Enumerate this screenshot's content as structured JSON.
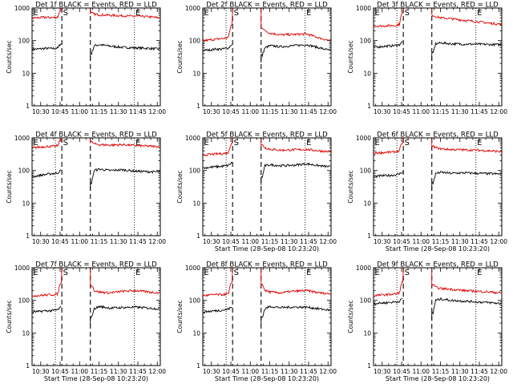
{
  "colors": {
    "events": "#000000",
    "lld": "#e00000",
    "axes": "#000000",
    "background": "#ffffff"
  },
  "common": {
    "x_labels": [
      "10:30",
      "10:45",
      "11:00",
      "11:15",
      "11:30",
      "11:45",
      "12:00"
    ],
    "y_labels": [
      "1",
      "10",
      "100",
      "1000"
    ],
    "ylabel": "Counts/sec",
    "xlabel": "Start Time (28-Sep-08 10:23:20)",
    "markers": [
      {
        "label": "E",
        "t_min": 0,
        "style": "dotted"
      },
      {
        "label": "",
        "t_min": 18,
        "style": "dotted"
      },
      {
        "label": "S",
        "t_min": 23,
        "style": "dashed"
      },
      {
        "label": "",
        "t_min": 45,
        "style": "dashed"
      },
      {
        "label": "E",
        "t_min": 79,
        "style": "dotted"
      }
    ]
  },
  "chart_data": [
    {
      "type": "line",
      "title": "Det 1f BLACK = Events, RED = LLD",
      "x_unit": "minutes after 10:23:20",
      "xlim": [
        0,
        99
      ],
      "ylim": [
        1,
        1000
      ],
      "yscale": "log",
      "gap": [
        23,
        45
      ],
      "show_xlabel": false,
      "series": [
        {
          "name": "Events",
          "color": "black",
          "x": [
            1,
            5,
            10,
            15,
            18,
            20,
            22,
            46,
            48,
            52,
            60,
            70,
            80,
            90,
            98
          ],
          "y": [
            55,
            55,
            58,
            57,
            58,
            60,
            80,
            40,
            70,
            75,
            68,
            62,
            60,
            58,
            55
          ]
        },
        {
          "name": "LLD",
          "color": "red",
          "x": [
            1,
            5,
            10,
            15,
            18,
            20,
            22,
            46,
            48,
            52,
            60,
            70,
            80,
            90,
            98
          ],
          "y": [
            500,
            500,
            520,
            510,
            510,
            550,
            900,
            700,
            650,
            620,
            600,
            580,
            560,
            540,
            500
          ]
        }
      ]
    },
    {
      "type": "line",
      "title": "Det 2f BLACK = Events, RED = LLD",
      "x_unit": "minutes after 10:23:20",
      "xlim": [
        0,
        99
      ],
      "ylim": [
        1,
        1000
      ],
      "yscale": "log",
      "gap": [
        23,
        45
      ],
      "show_xlabel": false,
      "series": [
        {
          "name": "Events",
          "color": "black",
          "x": [
            1,
            5,
            10,
            15,
            18,
            20,
            22,
            46,
            48,
            52,
            60,
            70,
            80,
            90,
            98
          ],
          "y": [
            50,
            52,
            55,
            55,
            58,
            60,
            75,
            35,
            60,
            70,
            65,
            70,
            75,
            60,
            50
          ]
        },
        {
          "name": "LLD",
          "color": "red",
          "x": [
            1,
            5,
            10,
            15,
            18,
            20,
            22,
            46,
            48,
            52,
            60,
            70,
            80,
            90,
            98
          ],
          "y": [
            100,
            105,
            110,
            115,
            120,
            130,
            300,
            250,
            200,
            170,
            150,
            155,
            160,
            120,
            100
          ]
        }
      ]
    },
    {
      "type": "line",
      "title": "Det 3f BLACK = Events, RED = LLD",
      "x_unit": "minutes after 10:23:20",
      "xlim": [
        0,
        99
      ],
      "ylim": [
        1,
        1000
      ],
      "yscale": "log",
      "gap": [
        23,
        45
      ],
      "show_xlabel": false,
      "series": [
        {
          "name": "Events",
          "color": "black",
          "x": [
            1,
            5,
            10,
            15,
            18,
            20,
            22,
            46,
            48,
            52,
            60,
            70,
            80,
            90,
            98
          ],
          "y": [
            65,
            65,
            68,
            70,
            72,
            75,
            90,
            40,
            80,
            85,
            80,
            78,
            78,
            76,
            75
          ]
        },
        {
          "name": "LLD",
          "color": "red",
          "x": [
            1,
            5,
            10,
            15,
            18,
            20,
            22,
            46,
            48,
            52,
            60,
            70,
            80,
            90,
            98
          ],
          "y": [
            280,
            280,
            285,
            290,
            300,
            320,
            700,
            600,
            550,
            500,
            470,
            420,
            380,
            340,
            320
          ]
        }
      ]
    },
    {
      "type": "line",
      "title": "Det 4f BLACK = Events, RED = LLD",
      "x_unit": "minutes after 10:23:20",
      "xlim": [
        0,
        99
      ],
      "ylim": [
        1,
        1000
      ],
      "yscale": "log",
      "gap": [
        23,
        45
      ],
      "show_xlabel": false,
      "series": [
        {
          "name": "Events",
          "color": "black",
          "x": [
            1,
            5,
            10,
            15,
            18,
            20,
            22,
            46,
            48,
            52,
            60,
            70,
            80,
            90,
            98
          ],
          "y": [
            65,
            70,
            75,
            80,
            82,
            85,
            100,
            40,
            100,
            110,
            100,
            105,
            95,
            92,
            90
          ]
        },
        {
          "name": "LLD",
          "color": "red",
          "x": [
            1,
            5,
            10,
            15,
            18,
            20,
            22,
            46,
            48,
            52,
            60,
            70,
            80,
            90,
            98
          ],
          "y": [
            500,
            520,
            540,
            550,
            560,
            580,
            900,
            750,
            650,
            620,
            600,
            620,
            580,
            560,
            540
          ]
        }
      ]
    },
    {
      "type": "line",
      "title": "Det 5f BLACK = Events, RED = LLD",
      "x_unit": "minutes after 10:23:20",
      "xlim": [
        0,
        99
      ],
      "ylim": [
        1,
        1000
      ],
      "yscale": "log",
      "gap": [
        23,
        45
      ],
      "show_xlabel": true,
      "series": [
        {
          "name": "Events",
          "color": "black",
          "x": [
            1,
            5,
            10,
            15,
            18,
            20,
            22,
            46,
            48,
            52,
            60,
            70,
            80,
            90,
            98
          ],
          "y": [
            120,
            125,
            130,
            135,
            140,
            145,
            170,
            60,
            140,
            150,
            140,
            145,
            160,
            140,
            130
          ]
        },
        {
          "name": "LLD",
          "color": "red",
          "x": [
            1,
            5,
            10,
            15,
            18,
            20,
            22,
            46,
            48,
            52,
            60,
            70,
            80,
            90,
            98
          ],
          "y": [
            300,
            310,
            320,
            330,
            340,
            360,
            700,
            600,
            500,
            450,
            420,
            430,
            440,
            400,
            380
          ]
        }
      ]
    },
    {
      "type": "line",
      "title": "Det 6f BLACK = Events, RED = LLD",
      "x_unit": "minutes after 10:23:20",
      "xlim": [
        0,
        99
      ],
      "ylim": [
        1,
        1000
      ],
      "yscale": "log",
      "gap": [
        23,
        45
      ],
      "show_xlabel": true,
      "series": [
        {
          "name": "Events",
          "color": "black",
          "x": [
            1,
            5,
            10,
            15,
            18,
            20,
            22,
            46,
            48,
            52,
            60,
            70,
            80,
            90,
            98
          ],
          "y": [
            65,
            68,
            70,
            72,
            75,
            78,
            90,
            40,
            80,
            88,
            82,
            85,
            82,
            80,
            78
          ]
        },
        {
          "name": "LLD",
          "color": "red",
          "x": [
            1,
            5,
            10,
            15,
            18,
            20,
            22,
            46,
            48,
            52,
            60,
            70,
            80,
            90,
            98
          ],
          "y": [
            350,
            350,
            360,
            370,
            380,
            400,
            700,
            550,
            500,
            460,
            440,
            430,
            420,
            400,
            380
          ]
        }
      ]
    },
    {
      "type": "line",
      "title": "Det 7f BLACK = Events, RED = LLD",
      "x_unit": "minutes after 10:23:20",
      "xlim": [
        0,
        99
      ],
      "ylim": [
        1,
        1000
      ],
      "yscale": "log",
      "gap": [
        23,
        45
      ],
      "show_xlabel": true,
      "series": [
        {
          "name": "Events",
          "color": "black",
          "x": [
            1,
            5,
            10,
            15,
            18,
            20,
            22,
            46,
            48,
            52,
            60,
            70,
            80,
            90,
            98
          ],
          "y": [
            45,
            45,
            48,
            48,
            50,
            52,
            60,
            30,
            55,
            65,
            58,
            60,
            62,
            58,
            55
          ]
        },
        {
          "name": "LLD",
          "color": "red",
          "x": [
            1,
            5,
            10,
            15,
            18,
            20,
            22,
            46,
            48,
            52,
            60,
            70,
            80,
            90,
            98
          ],
          "y": [
            140,
            140,
            145,
            150,
            150,
            160,
            350,
            300,
            200,
            180,
            170,
            190,
            200,
            180,
            170
          ]
        }
      ]
    },
    {
      "type": "line",
      "title": "Det 8f BLACK = Events, RED = LLD",
      "x_unit": "minutes after 10:23:20",
      "xlim": [
        0,
        99
      ],
      "ylim": [
        1,
        1000
      ],
      "yscale": "log",
      "gap": [
        23,
        45
      ],
      "show_xlabel": true,
      "series": [
        {
          "name": "Events",
          "color": "black",
          "x": [
            1,
            5,
            10,
            15,
            18,
            20,
            22,
            46,
            48,
            52,
            60,
            70,
            80,
            90,
            98
          ],
          "y": [
            45,
            46,
            48,
            50,
            52,
            55,
            60,
            30,
            55,
            65,
            60,
            62,
            62,
            55,
            50
          ]
        },
        {
          "name": "LLD",
          "color": "red",
          "x": [
            1,
            5,
            10,
            15,
            18,
            20,
            22,
            46,
            48,
            52,
            60,
            70,
            80,
            90,
            98
          ],
          "y": [
            140,
            145,
            150,
            150,
            155,
            160,
            350,
            300,
            200,
            180,
            170,
            190,
            200,
            170,
            160
          ]
        }
      ]
    },
    {
      "type": "line",
      "title": "Det 9f BLACK = Events, RED = LLD",
      "x_unit": "minutes after 10:23:20",
      "xlim": [
        0,
        99
      ],
      "ylim": [
        1,
        1000
      ],
      "yscale": "log",
      "gap": [
        23,
        45
      ],
      "show_xlabel": true,
      "series": [
        {
          "name": "Events",
          "color": "black",
          "x": [
            1,
            5,
            10,
            15,
            18,
            20,
            22,
            46,
            48,
            52,
            60,
            70,
            80,
            90,
            98
          ],
          "y": [
            80,
            82,
            85,
            88,
            90,
            95,
            110,
            40,
            100,
            110,
            100,
            95,
            90,
            85,
            80
          ]
        },
        {
          "name": "LLD",
          "color": "red",
          "x": [
            1,
            5,
            10,
            15,
            18,
            20,
            22,
            46,
            48,
            52,
            60,
            70,
            80,
            90,
            98
          ],
          "y": [
            140,
            145,
            150,
            155,
            160,
            170,
            350,
            300,
            250,
            230,
            220,
            200,
            190,
            180,
            170
          ]
        }
      ]
    }
  ]
}
